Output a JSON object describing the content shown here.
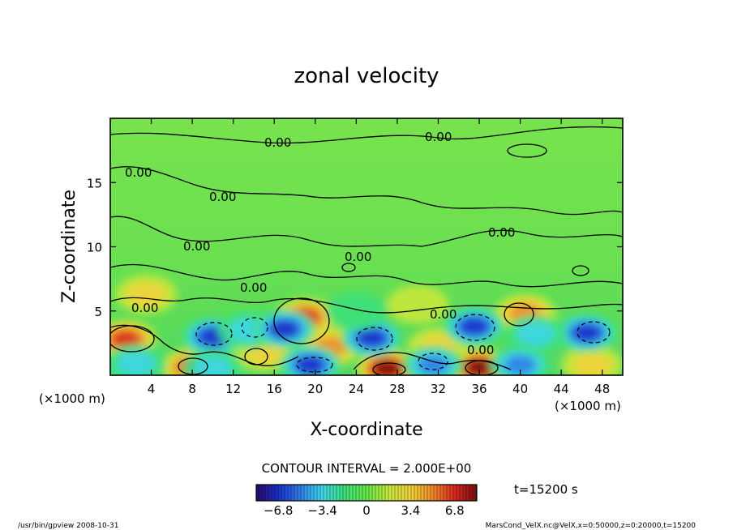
{
  "chart_data": {
    "type": "heatmap",
    "title": "zonal velocity",
    "xlabel": "X-coordinate",
    "ylabel": "Z-coordinate",
    "x_unit": "(×1000 m)",
    "y_unit": "(×1000 m)",
    "x_ticks": [
      "4",
      "8",
      "12",
      "16",
      "20",
      "24",
      "28",
      "32",
      "36",
      "40",
      "44",
      "48"
    ],
    "y_ticks": [
      "5",
      "10",
      "15"
    ],
    "xlim": [
      0,
      50
    ],
    "ylim": [
      0,
      20
    ],
    "contour_labels": [
      "0.00",
      "0.00",
      "0.00",
      "0.00",
      "0.00",
      "0.00",
      "0.00",
      "0.00",
      "0.00",
      "0.00",
      "0.00"
    ],
    "contour_interval_text": "CONTOUR INTERVAL = 2.000E+00",
    "colorbar": {
      "ticks": [
        "−6.8",
        "−3.4",
        "0",
        "3.4",
        "6.8"
      ],
      "range": [
        -8.5,
        8.5
      ],
      "colors": [
        "#2a0a6e",
        "#1a2fc8",
        "#2f7fe8",
        "#3fd6e8",
        "#3ee07a",
        "#62e84a",
        "#c8e83a",
        "#f2d23a",
        "#f08a2a",
        "#d8281e",
        "#7a0f10"
      ]
    },
    "features": [
      {
        "x": 1.5,
        "z": 2.8,
        "value": 7.5
      },
      {
        "x": 19.0,
        "z": 4.5,
        "value": 7.5
      },
      {
        "x": 21.5,
        "z": 2.2,
        "value": 4.5
      },
      {
        "x": 8.0,
        "z": 0.6,
        "value": 7.0
      },
      {
        "x": 27.0,
        "z": 0.5,
        "value": 8.0
      },
      {
        "x": 36.0,
        "z": 0.6,
        "value": 8.0
      },
      {
        "x": 40.5,
        "z": 4.8,
        "value": 5.5
      },
      {
        "x": 15.0,
        "z": 1.8,
        "value": 4.0
      },
      {
        "x": 32.0,
        "z": 2.2,
        "value": 3.0
      },
      {
        "x": 3.5,
        "z": 6.3,
        "value": 3.0
      },
      {
        "x": 47.0,
        "z": 0.8,
        "value": 3.5
      },
      {
        "x": 10.0,
        "z": 3.0,
        "value": -6.5
      },
      {
        "x": 13.5,
        "z": 3.5,
        "value": -4.0
      },
      {
        "x": 17.0,
        "z": 3.6,
        "value": -6.0
      },
      {
        "x": 2.5,
        "z": 0.9,
        "value": -4.0
      },
      {
        "x": 10.0,
        "z": 0.5,
        "value": -3.0
      },
      {
        "x": 19.5,
        "z": 0.8,
        "value": -6.0
      },
      {
        "x": 25.5,
        "z": 2.9,
        "value": -6.0
      },
      {
        "x": 31.5,
        "z": 0.8,
        "value": -5.5
      },
      {
        "x": 35.5,
        "z": 3.8,
        "value": -7.0
      },
      {
        "x": 40.0,
        "z": 0.8,
        "value": -5.0
      },
      {
        "x": 46.5,
        "z": 3.3,
        "value": -6.0
      },
      {
        "x": 41.5,
        "z": 3.2,
        "value": -3.0
      },
      {
        "x": 30.0,
        "z": 5.5,
        "value": 1.5
      },
      {
        "x": 24.0,
        "z": 5.0,
        "value": -1.5
      }
    ]
  },
  "time_label": "t=15200 s",
  "footer_left": "/usr/bin/gpview   2008-10-31",
  "footer_right": "MarsCond_VelX.nc@VelX,x=0:50000,z=0:20000,t=15200"
}
